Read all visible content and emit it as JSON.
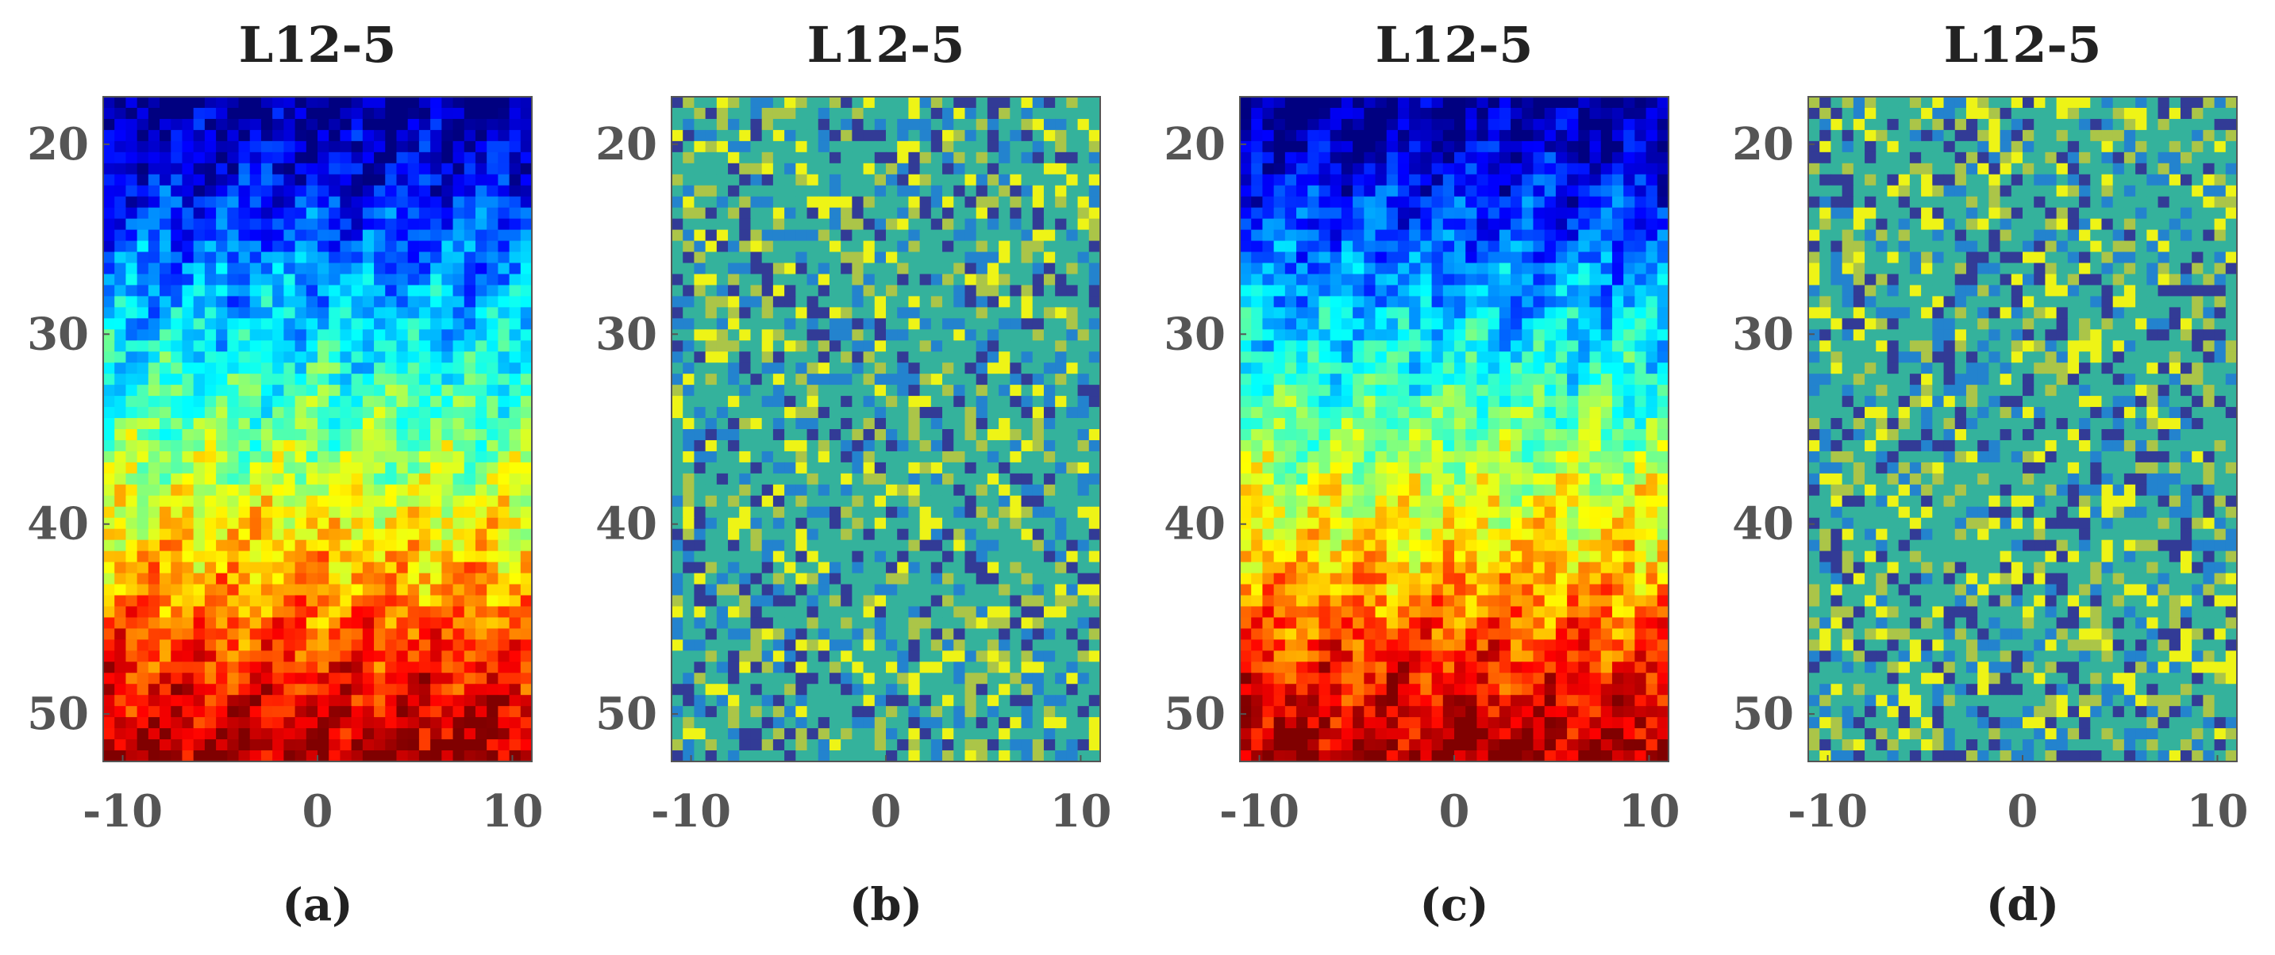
{
  "chart_data": [
    {
      "panel": "(a)",
      "type": "heatmap",
      "title": "L12-5",
      "colormap": "jet",
      "pattern": "depth-gradient",
      "xlim": [
        -11,
        11
      ],
      "ylim": [
        17.5,
        52.5
      ],
      "y_reversed": true,
      "x_ticks": [
        -10,
        0,
        10
      ],
      "y_ticks": [
        20,
        30,
        40,
        50
      ],
      "xlabel": "",
      "ylabel": ""
    },
    {
      "panel": "(b)",
      "type": "heatmap",
      "title": "L12-5",
      "colormap": "parula",
      "pattern": "speckle",
      "xlim": [
        -11,
        11
      ],
      "ylim": [
        17.5,
        52.5
      ],
      "y_reversed": true,
      "x_ticks": [
        -10,
        0,
        10
      ],
      "y_ticks": [
        20,
        30,
        40,
        50
      ],
      "xlabel": "",
      "ylabel": ""
    },
    {
      "panel": "(c)",
      "type": "heatmap",
      "title": "L12-5",
      "colormap": "jet",
      "pattern": "depth-gradient",
      "xlim": [
        -11,
        11
      ],
      "ylim": [
        17.5,
        52.5
      ],
      "y_reversed": true,
      "x_ticks": [
        -10,
        0,
        10
      ],
      "y_ticks": [
        20,
        30,
        40,
        50
      ],
      "xlabel": "",
      "ylabel": ""
    },
    {
      "panel": "(d)",
      "type": "heatmap",
      "title": "L12-5",
      "colormap": "parula",
      "pattern": "speckle",
      "xlim": [
        -11,
        11
      ],
      "ylim": [
        17.5,
        52.5
      ],
      "y_reversed": true,
      "x_ticks": [
        -10,
        0,
        10
      ],
      "y_ticks": [
        20,
        30,
        40,
        50
      ],
      "xlabel": "",
      "ylabel": ""
    }
  ]
}
